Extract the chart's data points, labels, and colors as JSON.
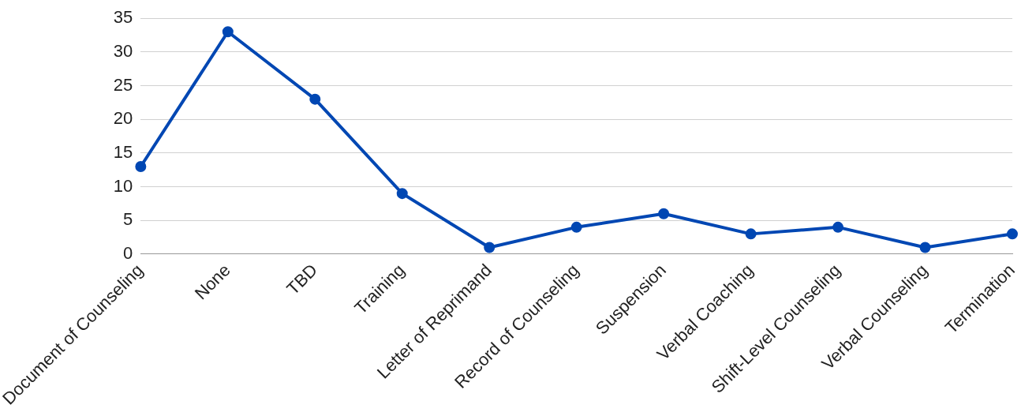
{
  "chart_data": {
    "type": "line",
    "categories": [
      "Document of Counseling",
      "None",
      "TBD",
      "Training",
      "Letter of Reprimand",
      "Record of Counseling",
      "Suspension",
      "Verbal Coaching",
      "Shift-Level Counseling",
      "Verbal Counseling",
      "Termination"
    ],
    "values": [
      13,
      33,
      23,
      9,
      1,
      4,
      6,
      3,
      4,
      1,
      3
    ],
    "color": "#0047b3",
    "ylim": [
      0,
      35
    ],
    "yticks": [
      0,
      5,
      10,
      15,
      20,
      25,
      30,
      35
    ],
    "grid": "y",
    "marker": "circle"
  }
}
